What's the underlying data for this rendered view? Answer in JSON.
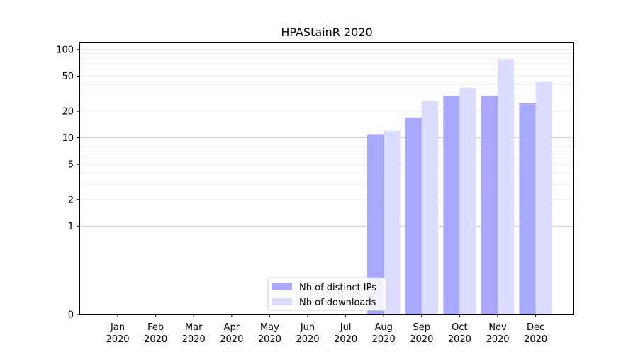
{
  "chart_data": {
    "type": "bar",
    "title": "HPAStainR 2020",
    "xlabel": "",
    "ylabel": "",
    "yscale": "symlog",
    "ylim": [
      0,
      120
    ],
    "grid": "y",
    "legend_position": "lower-center",
    "categories": [
      {
        "month": "Jan",
        "year": "2020"
      },
      {
        "month": "Feb",
        "year": "2020"
      },
      {
        "month": "Mar",
        "year": "2020"
      },
      {
        "month": "Apr",
        "year": "2020"
      },
      {
        "month": "May",
        "year": "2020"
      },
      {
        "month": "Jun",
        "year": "2020"
      },
      {
        "month": "Jul",
        "year": "2020"
      },
      {
        "month": "Aug",
        "year": "2020"
      },
      {
        "month": "Sep",
        "year": "2020"
      },
      {
        "month": "Oct",
        "year": "2020"
      },
      {
        "month": "Nov",
        "year": "2020"
      },
      {
        "month": "Dec",
        "year": "2020"
      }
    ],
    "yticks": [
      {
        "value": 0,
        "label": "0"
      },
      {
        "value": 1,
        "label": "1"
      },
      {
        "value": 2,
        "label": "2"
      },
      {
        "value": 5,
        "label": "5"
      },
      {
        "value": 10,
        "label": "10"
      },
      {
        "value": 20,
        "label": "20"
      },
      {
        "value": 50,
        "label": "50"
      },
      {
        "value": 100,
        "label": "100"
      }
    ],
    "series": [
      {
        "name": "Nb of distinct IPs",
        "color": "#a8a8ff",
        "values": [
          0,
          0,
          0,
          0,
          0,
          0,
          0,
          11,
          17,
          30,
          30,
          25
        ]
      },
      {
        "name": "Nb of downloads",
        "color": "#dcdcff",
        "values": [
          0,
          0,
          0,
          0,
          0,
          0,
          0,
          12,
          26,
          37,
          78,
          43
        ]
      }
    ]
  }
}
